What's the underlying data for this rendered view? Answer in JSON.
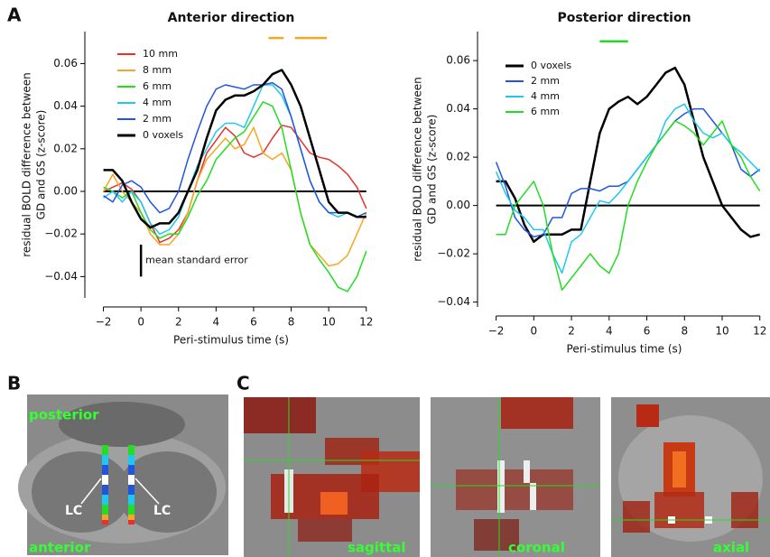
{
  "panel_labels": [
    "A",
    "B",
    "C"
  ],
  "chart_data": [
    {
      "type": "line",
      "title": "Anterior direction",
      "xlabel": "Peri-stimulus time (s)",
      "ylabel": [
        "residual BOLD difference between",
        "GD and GS (z-score)"
      ],
      "legend": "upper left",
      "hline": 0,
      "x": [
        -2,
        -1.5,
        -1,
        -0.5,
        0,
        0.5,
        1,
        1.5,
        2,
        2.5,
        3,
        3.5,
        4,
        4.5,
        5,
        5.5,
        6,
        6.5,
        7,
        7.5,
        8,
        8.5,
        9,
        9.5,
        10,
        10.5,
        11,
        11.5,
        12
      ],
      "xlim": [
        -2.7,
        12.3
      ],
      "xticks": [
        {
          "value": -2,
          "label": "−2"
        },
        0,
        2,
        4,
        6,
        8,
        10,
        12
      ],
      "ylim": [
        -0.05,
        0.075
      ],
      "yticks": [
        {
          "value": -0.04,
          "label": "−0.04"
        },
        {
          "value": -0.02,
          "label": "−0.02"
        },
        {
          "value": 0,
          "label": "0.00"
        },
        0.02,
        0.04,
        0.06
      ],
      "significance_bars": [
        {
          "color": "#f5a623",
          "x": [
            6.8,
            7.6
          ],
          "y": 0.072
        },
        {
          "color": "#f5a623",
          "x": [
            8.2,
            9.9
          ],
          "y": 0.072
        }
      ],
      "annotation": {
        "text": "mean standard error",
        "x": 0,
        "y": [
          -0.04,
          -0.025
        ]
      },
      "series": [
        {
          "name": "10 mm",
          "color": "#e8312a",
          "width": 1.5,
          "values": [
            0.0,
            0.002,
            0.004,
            0.001,
            -0.005,
            -0.015,
            -0.024,
            -0.022,
            -0.018,
            -0.01,
            0.005,
            0.018,
            0.024,
            0.03,
            0.026,
            0.018,
            0.016,
            0.018,
            0.025,
            0.031,
            0.03,
            0.024,
            0.018,
            0.016,
            0.015,
            0.012,
            0.008,
            0.002,
            -0.008
          ]
        },
        {
          "name": "8 mm",
          "color": "#f5a623",
          "width": 1.5,
          "values": [
            0.0,
            0.008,
            0.0,
            -0.005,
            -0.01,
            -0.02,
            -0.025,
            -0.025,
            -0.02,
            -0.01,
            0.005,
            0.015,
            0.02,
            0.025,
            0.02,
            0.022,
            0.03,
            0.018,
            0.015,
            0.018,
            0.01,
            -0.01,
            -0.025,
            -0.03,
            -0.035,
            -0.034,
            -0.03,
            -0.02,
            -0.01
          ]
        },
        {
          "name": "6 mm",
          "color": "#22dd22",
          "width": 1.5,
          "values": [
            0.002,
            0.0,
            -0.003,
            0.0,
            -0.01,
            -0.018,
            -0.022,
            -0.02,
            -0.02,
            -0.012,
            -0.002,
            0.005,
            0.015,
            0.02,
            0.025,
            0.028,
            0.035,
            0.042,
            0.04,
            0.03,
            0.01,
            -0.01,
            -0.025,
            -0.032,
            -0.038,
            -0.045,
            -0.047,
            -0.04,
            -0.028
          ]
        },
        {
          "name": "4 mm",
          "color": "#1ec8f0",
          "width": 1.5,
          "values": [
            -0.003,
            0.0,
            -0.005,
            0.0,
            -0.005,
            -0.015,
            -0.02,
            -0.018,
            -0.012,
            0.0,
            0.012,
            0.02,
            0.028,
            0.032,
            0.032,
            0.03,
            0.04,
            0.05,
            0.05,
            0.045,
            0.035,
            0.02,
            0.005,
            -0.005,
            -0.01,
            -0.012,
            -0.01,
            -0.012,
            -0.012
          ]
        },
        {
          "name": "2 mm",
          "color": "#2255dd",
          "width": 1.5,
          "values": [
            -0.002,
            -0.005,
            0.003,
            0.005,
            0.002,
            -0.005,
            -0.01,
            -0.008,
            0.0,
            0.015,
            0.028,
            0.04,
            0.048,
            0.05,
            0.049,
            0.048,
            0.05,
            0.05,
            0.051,
            0.048,
            0.035,
            0.02,
            0.005,
            -0.005,
            -0.01,
            -0.01,
            -0.01,
            -0.012,
            -0.01
          ]
        },
        {
          "name": "0 voxels",
          "color": "#000000",
          "width": 2.5,
          "values": [
            0.01,
            0.01,
            0.005,
            -0.005,
            -0.013,
            -0.017,
            -0.015,
            -0.015,
            -0.01,
            0.0,
            0.01,
            0.025,
            0.038,
            0.043,
            0.045,
            0.045,
            0.047,
            0.05,
            0.055,
            0.057,
            0.05,
            0.04,
            0.025,
            0.01,
            -0.005,
            -0.01,
            -0.01,
            -0.012,
            -0.012
          ]
        }
      ]
    },
    {
      "type": "line",
      "title": "Posterior direction",
      "xlabel": "Peri-stimulus time (s)",
      "ylabel": [
        "residual BOLD difference between",
        "GD and GS (z-score)"
      ],
      "legend": "upper left",
      "hline": 0,
      "x": [
        -2,
        -1.5,
        -1,
        -0.5,
        0,
        0.5,
        1,
        1.5,
        2,
        2.5,
        3,
        3.5,
        4,
        4.5,
        5,
        5.5,
        6,
        6.5,
        7,
        7.5,
        8,
        8.5,
        9,
        9.5,
        10,
        10.5,
        11,
        11.5,
        12
      ],
      "xlim": [
        -2.7,
        12.3
      ],
      "xticks": [
        {
          "value": -2,
          "label": "−2"
        },
        0,
        2,
        4,
        6,
        8,
        10,
        12
      ],
      "ylim": [
        -0.042,
        0.072
      ],
      "yticks": [
        {
          "value": -0.04,
          "label": "−0.04"
        },
        {
          "value": -0.02,
          "label": "−0.02"
        },
        {
          "value": 0,
          "label": "0.00"
        },
        0.02,
        0.04,
        0.06
      ],
      "significance_bars": [
        {
          "color": "#22dd22",
          "x": [
            3.5,
            5.0
          ],
          "y": 0.068
        }
      ],
      "series": [
        {
          "name": "0 voxels",
          "color": "#000000",
          "width": 2.5,
          "values": [
            0.01,
            0.01,
            0.003,
            -0.008,
            -0.015,
            -0.012,
            -0.012,
            -0.012,
            -0.01,
            -0.01,
            0.01,
            0.03,
            0.04,
            0.043,
            0.045,
            0.042,
            0.045,
            0.05,
            0.055,
            0.057,
            0.05,
            0.035,
            0.02,
            0.01,
            0.0,
            -0.005,
            -0.01,
            -0.013,
            -0.012
          ]
        },
        {
          "name": "2 mm",
          "color": "#2255dd",
          "width": 1.5,
          "values": [
            0.018,
            0.008,
            -0.005,
            -0.01,
            -0.013,
            -0.012,
            -0.005,
            -0.005,
            0.005,
            0.007,
            0.007,
            0.006,
            0.008,
            0.008,
            0.01,
            0.015,
            0.02,
            0.025,
            0.03,
            0.035,
            0.038,
            0.04,
            0.04,
            0.035,
            0.03,
            0.025,
            0.015,
            0.012,
            0.015
          ]
        },
        {
          "name": "4 mm",
          "color": "#1ec8f0",
          "width": 1.5,
          "values": [
            0.014,
            0.005,
            -0.002,
            -0.005,
            -0.01,
            -0.01,
            -0.02,
            -0.028,
            -0.015,
            -0.012,
            -0.005,
            0.002,
            0.001,
            0.005,
            0.01,
            0.015,
            0.02,
            0.025,
            0.035,
            0.04,
            0.042,
            0.035,
            0.03,
            0.028,
            0.03,
            0.025,
            0.022,
            0.018,
            0.014
          ]
        },
        {
          "name": "6 mm",
          "color": "#22dd22",
          "width": 1.5,
          "values": [
            -0.012,
            -0.012,
            0.0,
            0.005,
            0.01,
            0.0,
            -0.02,
            -0.035,
            -0.03,
            -0.025,
            -0.02,
            -0.025,
            -0.028,
            -0.02,
            0.0,
            0.01,
            0.018,
            0.025,
            0.03,
            0.035,
            0.033,
            0.03,
            0.025,
            0.03,
            0.035,
            0.025,
            0.02,
            0.012,
            0.006
          ]
        }
      ]
    }
  ],
  "images": {
    "B": {
      "top_label": "posterior",
      "bottom_label": "anterior",
      "markers": [
        "LC",
        "LC"
      ]
    },
    "C": {
      "views": [
        "sagittal",
        "coronal",
        "axial"
      ]
    }
  }
}
